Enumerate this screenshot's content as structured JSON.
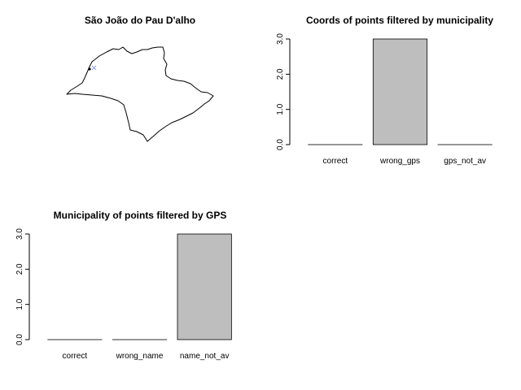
{
  "colors": {
    "bar_fill": "#bebebe",
    "bar_stroke": "#000000",
    "gps_point": "#000000",
    "municipality_point": "#8c9ad6"
  },
  "map": {
    "title": "São João do Pau D'alho",
    "markers": [
      {
        "name": "gps-point",
        "shape": "filled-circle",
        "color": "#000000"
      },
      {
        "name": "municipality-point",
        "shape": "x-mark",
        "color": "#8c9ad6"
      }
    ]
  },
  "chart_data": [
    {
      "id": "coords-filtered-by-municipality",
      "type": "bar",
      "title": "Coords of points filtered by municipality",
      "categories": [
        "correct",
        "wrong_gps",
        "gps_not_av"
      ],
      "values": [
        0,
        3,
        0
      ],
      "ylim": [
        0,
        3
      ],
      "yticks": [
        "0.0",
        "1.0",
        "2.0",
        "3.0"
      ],
      "xlabel": "",
      "ylabel": "",
      "grid": false
    },
    {
      "id": "municipality-filtered-by-gps",
      "type": "bar",
      "title": "Municipality of points filtered by GPS",
      "categories": [
        "correct",
        "wrong_name",
        "name_not_av"
      ],
      "values": [
        0,
        0,
        3
      ],
      "ylim": [
        0,
        3
      ],
      "yticks": [
        "0.0",
        "1.0",
        "2.0",
        "3.0"
      ],
      "xlabel": "",
      "ylabel": "",
      "grid": false
    }
  ]
}
